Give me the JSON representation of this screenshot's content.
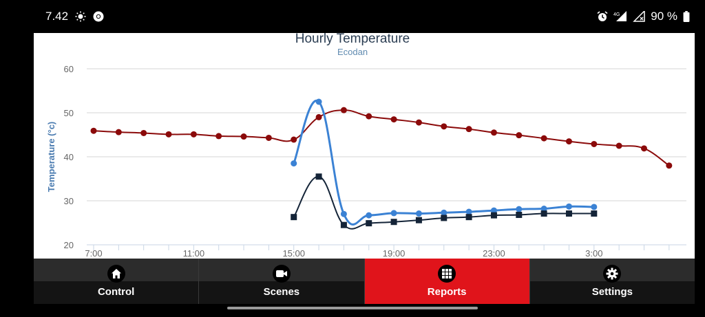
{
  "status_bar": {
    "time": "7.42",
    "battery": "90 %"
  },
  "chart_data": {
    "type": "line",
    "title": "Hourly Temperature",
    "subtitle": "Ecodan",
    "ylabel": "Temperature (°c)",
    "xlabel": "",
    "ylim": [
      20,
      60
    ],
    "yticks": [
      20,
      30,
      40,
      50,
      60
    ],
    "xlim": [
      7,
      30.5
    ],
    "xticks": [
      {
        "x": 7,
        "label": "7:00"
      },
      {
        "x": 11,
        "label": "11:00"
      },
      {
        "x": 15,
        "label": "15:00"
      },
      {
        "x": 19,
        "label": "19:00"
      },
      {
        "x": 23,
        "label": "23:00"
      },
      {
        "x": 27,
        "label": "3:00"
      }
    ],
    "grid": true,
    "legend": "none",
    "series": [
      {
        "color": "#8b0a0a",
        "marker": "circle",
        "x": [
          7,
          8,
          9,
          10,
          11,
          12,
          13,
          14,
          15,
          16,
          17,
          18,
          19,
          20,
          21,
          22,
          23,
          24,
          25,
          26,
          27,
          28,
          29,
          30
        ],
        "values": [
          45.9,
          45.6,
          45.4,
          45.1,
          45.1,
          44.7,
          44.6,
          44.3,
          43.9,
          49.0,
          50.6,
          49.2,
          48.5,
          47.8,
          46.9,
          46.3,
          45.5,
          44.9,
          44.2,
          43.5,
          42.9,
          42.5,
          41.9,
          38.0
        ]
      },
      {
        "color": "#3b82d4",
        "marker": "circle",
        "x": [
          15,
          16,
          17,
          18,
          19,
          20,
          21,
          22,
          23,
          24,
          25,
          26,
          27
        ],
        "values": [
          38.5,
          52.5,
          27.0,
          26.7,
          27.2,
          27.1,
          27.3,
          27.5,
          27.8,
          28.1,
          28.2,
          28.7,
          28.6
        ]
      },
      {
        "color": "#142438",
        "marker": "square",
        "x": [
          15,
          16,
          17,
          18,
          19,
          20,
          21,
          22,
          23,
          24,
          25,
          26,
          27
        ],
        "values": [
          26.3,
          35.5,
          24.5,
          24.9,
          25.2,
          25.6,
          26.1,
          26.3,
          26.7,
          26.8,
          27.1,
          27.1,
          27.1
        ]
      }
    ]
  },
  "nav": {
    "tabs": [
      {
        "label": "Control",
        "icon": "home-icon",
        "active": false
      },
      {
        "label": "Scenes",
        "icon": "video-camera-icon",
        "active": false
      },
      {
        "label": "Reports",
        "icon": "grid-icon",
        "active": true
      },
      {
        "label": "Settings",
        "icon": "gear-icon",
        "active": false
      }
    ]
  }
}
